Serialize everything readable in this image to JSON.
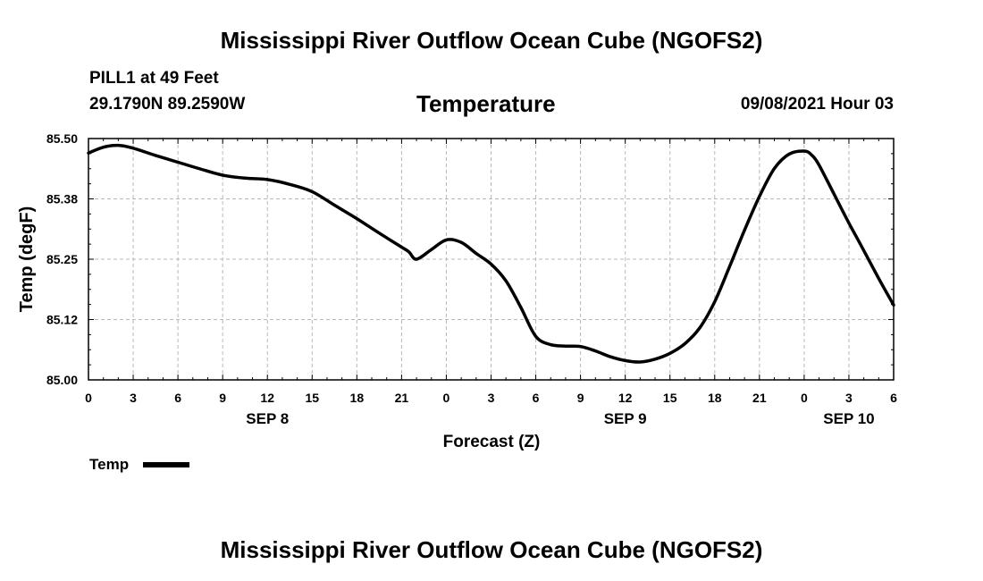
{
  "header": {
    "title_top": "Mississippi River Outflow Ocean Cube (NGOFS2)",
    "title_bottom": "Mississippi River Outflow Ocean Cube (NGOFS2)",
    "station": "PILL1 at 49 Feet",
    "coords": "29.1790N  89.2590W",
    "variable": "Temperature",
    "date": "09/08/2021 Hour 03"
  },
  "chart_data": {
    "type": "line",
    "title": "Temperature",
    "xlabel": "Forecast (Z)",
    "ylabel": "Temp (degF)",
    "xlim": [
      0,
      54
    ],
    "ylim": [
      85.0,
      85.5
    ],
    "y_ticks": [
      "85.00",
      "85.12",
      "85.25",
      "85.38",
      "85.50"
    ],
    "x_ticks": [
      "0",
      "3",
      "6",
      "9",
      "12",
      "15",
      "18",
      "21",
      "0",
      "3",
      "6",
      "9",
      "12",
      "15",
      "18",
      "21",
      "0",
      "3",
      "6"
    ],
    "day_labels": [
      {
        "label": "SEP 8",
        "x": 12
      },
      {
        "label": "SEP 9",
        "x": 36
      },
      {
        "label": "SEP 10",
        "x": 51
      }
    ],
    "legend": [
      {
        "name": "Temp",
        "color": "#000000"
      }
    ],
    "grid": true,
    "series": [
      {
        "name": "Temp",
        "x": [
          0,
          1,
          2,
          3,
          4.5,
          6,
          7.5,
          9,
          10.5,
          12,
          13.5,
          15,
          16.5,
          18,
          19.5,
          21,
          21.5,
          22,
          23,
          24,
          25,
          26,
          27,
          28,
          29,
          30,
          31,
          32,
          33,
          34,
          35,
          36,
          37,
          38,
          39,
          40,
          41,
          42,
          43,
          44,
          45,
          46,
          47,
          48,
          48.5,
          49,
          50,
          51,
          52,
          53,
          54
        ],
        "y": [
          85.47,
          85.482,
          85.486,
          85.48,
          85.465,
          85.451,
          85.437,
          85.424,
          85.418,
          85.415,
          85.405,
          85.39,
          85.362,
          85.334,
          85.304,
          85.275,
          85.265,
          85.25,
          85.27,
          85.29,
          85.285,
          85.262,
          85.24,
          85.205,
          85.15,
          85.09,
          85.073,
          85.07,
          85.069,
          85.06,
          85.048,
          85.04,
          85.037,
          85.043,
          85.055,
          85.075,
          85.108,
          85.162,
          85.235,
          85.31,
          85.38,
          85.438,
          85.468,
          85.474,
          85.466,
          85.445,
          85.385,
          85.325,
          85.268,
          85.21,
          85.155
        ]
      }
    ]
  }
}
